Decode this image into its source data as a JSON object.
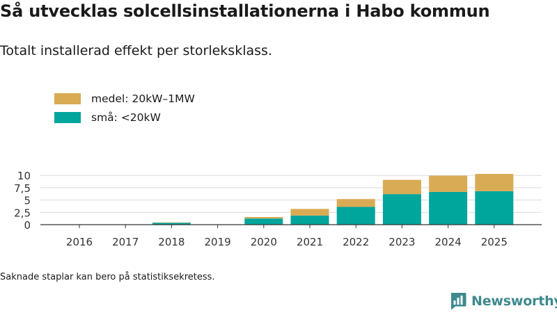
{
  "chart_data": {
    "type": "bar",
    "stacked": true,
    "title": "Så utvecklas solcellsinstallationerna i Habo kommun",
    "subtitle": "Totalt installerad effekt per storleksklass.",
    "categories": [
      "2016",
      "2017",
      "2018",
      "2019",
      "2020",
      "2021",
      "2022",
      "2023",
      "2024",
      "2025"
    ],
    "series": [
      {
        "name": "små: <20kW",
        "color": "#00a59b",
        "values": [
          0,
          0,
          0.38,
          0,
          1.25,
          1.85,
          3.6,
          6.2,
          6.65,
          6.8
        ]
      },
      {
        "name": "medel: 20kW–1MW",
        "color": "#d9ab55",
        "values": [
          0,
          0,
          0.07,
          0,
          0.3,
          1.35,
          1.6,
          2.9,
          3.3,
          3.5
        ]
      }
    ],
    "y_ticks": [
      0,
      2.5,
      5,
      7.5,
      10
    ],
    "y_tick_labels": [
      "0",
      "2,5",
      "5",
      "7,5",
      "10"
    ],
    "ylim": [
      0,
      10.8
    ],
    "xlabel": "",
    "ylabel": "",
    "legend_position": "top-left",
    "grid": true,
    "footnote": "Saknade staplar kan bero på statistiksekretess."
  },
  "brand": {
    "name": "Newsworthy",
    "icon": "newsworthy-logo-icon",
    "color": "#3d8a8f"
  }
}
